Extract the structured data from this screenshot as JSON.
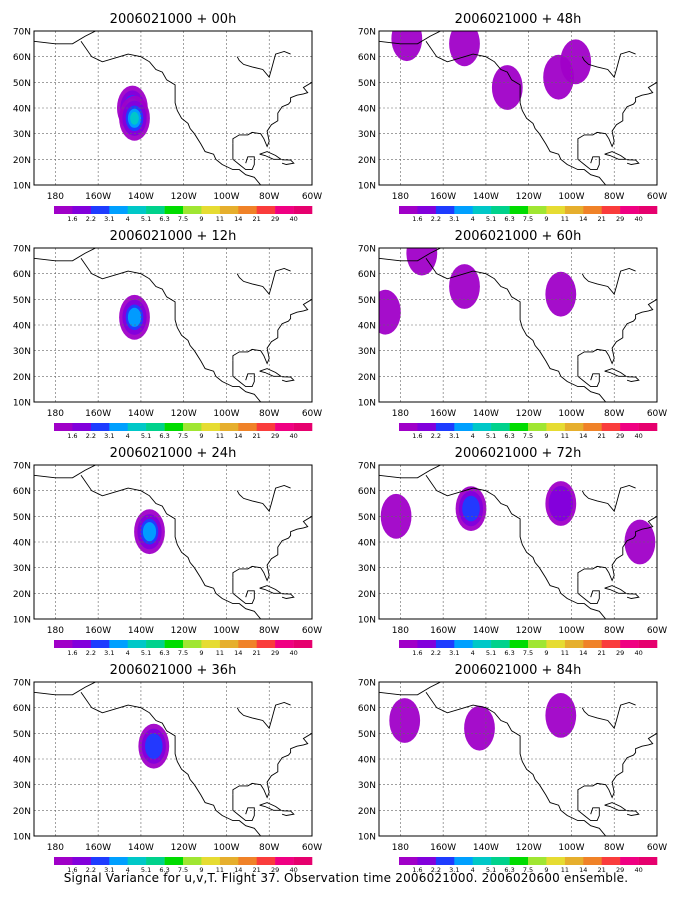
{
  "figure": {
    "caption": "Signal Variance for u,v,T. Flight 37. Observation time 2006021000. 2006020600 ensemble."
  },
  "map_axes": {
    "lon_ticks": [
      "180",
      "160W",
      "140W",
      "120W",
      "100W",
      "80W",
      "60W"
    ],
    "lat_ticks": [
      "10N",
      "20N",
      "30N",
      "40N",
      "50N",
      "60N",
      "70N"
    ],
    "lon_range": [
      -190,
      -60
    ],
    "lat_range": [
      10,
      70
    ]
  },
  "colorbar": {
    "labels": [
      "1.6",
      "2.2",
      "3.1",
      "4",
      "5.1",
      "6.3",
      "7.5",
      "9",
      "11",
      "14",
      "21",
      "29",
      "40"
    ],
    "colors": [
      "#a000c8",
      "#8200dc",
      "#1e3cff",
      "#00a0ff",
      "#00c8c8",
      "#00d28c",
      "#00dc00",
      "#a0e632",
      "#e6dc32",
      "#e6af2d",
      "#f08228",
      "#fa3c3c",
      "#f00082",
      "#e6006e"
    ]
  },
  "chart_data": [
    {
      "type": "heatmap",
      "title": "2006021000 + 00h",
      "grid": true,
      "blobs": [
        {
          "lon": -144,
          "lat": 40,
          "peak": 5.1
        },
        {
          "lon": -143,
          "lat": 36,
          "peak": 5.1
        }
      ]
    },
    {
      "type": "heatmap",
      "title": "2006021000 + 48h",
      "grid": true,
      "blobs": [
        {
          "lon": -177,
          "lat": 67,
          "peak": 1.6
        },
        {
          "lon": -150,
          "lat": 65,
          "peak": 1.6
        },
        {
          "lon": -130,
          "lat": 48,
          "peak": 1.6
        },
        {
          "lon": -106,
          "lat": 52,
          "peak": 1.6
        },
        {
          "lon": -98,
          "lat": 58,
          "peak": 1.6
        }
      ]
    },
    {
      "type": "heatmap",
      "title": "2006021000 + 12h",
      "grid": true,
      "blobs": [
        {
          "lon": -143,
          "lat": 43,
          "peak": 4
        }
      ]
    },
    {
      "type": "heatmap",
      "title": "2006021000 + 60h",
      "grid": true,
      "blobs": [
        {
          "lon": -150,
          "lat": 55,
          "peak": 1.6
        },
        {
          "lon": -105,
          "lat": 52,
          "peak": 1.6
        },
        {
          "lon": -170,
          "lat": 68,
          "peak": 1.6
        },
        {
          "lon": -187,
          "lat": 45,
          "peak": 1.6
        }
      ]
    },
    {
      "type": "heatmap",
      "title": "2006021000 + 24h",
      "grid": true,
      "blobs": [
        {
          "lon": -136,
          "lat": 44,
          "peak": 4
        }
      ]
    },
    {
      "type": "heatmap",
      "title": "2006021000 + 72h",
      "grid": true,
      "blobs": [
        {
          "lon": -182,
          "lat": 50,
          "peak": 1.6
        },
        {
          "lon": -147,
          "lat": 53,
          "peak": 3.1
        },
        {
          "lon": -105,
          "lat": 55,
          "peak": 2.2
        },
        {
          "lon": -68,
          "lat": 40,
          "peak": 1.6
        }
      ]
    },
    {
      "type": "heatmap",
      "title": "2006021000 + 36h",
      "grid": true,
      "blobs": [
        {
          "lon": -134,
          "lat": 45,
          "peak": 3.1
        }
      ]
    },
    {
      "type": "heatmap",
      "title": "2006021000 + 84h",
      "grid": true,
      "blobs": [
        {
          "lon": -178,
          "lat": 55,
          "peak": 1.6
        },
        {
          "lon": -143,
          "lat": 52,
          "peak": 1.6
        },
        {
          "lon": -105,
          "lat": 57,
          "peak": 1.6
        }
      ]
    }
  ]
}
